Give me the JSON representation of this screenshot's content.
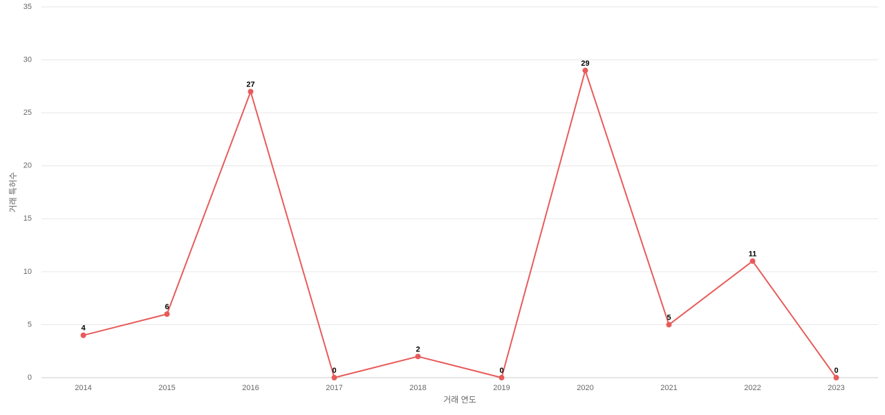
{
  "chart_data": {
    "type": "line",
    "x_label": "거래 연도",
    "y_label": "거래 특허수",
    "categories": [
      "2014",
      "2015",
      "2016",
      "2017",
      "2018",
      "2019",
      "2020",
      "2021",
      "2022",
      "2023"
    ],
    "values": [
      4,
      6,
      27,
      0,
      2,
      0,
      29,
      5,
      11,
      0
    ],
    "color": "#e85a5a",
    "ylim": [
      0,
      35
    ],
    "yticks": [
      0,
      5,
      10,
      15,
      20,
      25,
      30,
      35
    ],
    "grid": true
  }
}
